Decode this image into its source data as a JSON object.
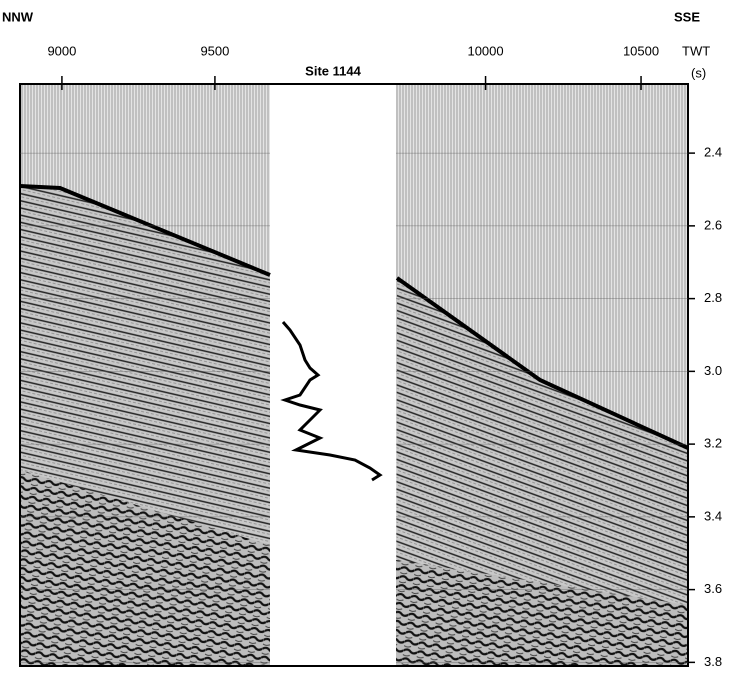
{
  "chart_data": {
    "type": "seismic-section",
    "title": "Site 1144",
    "left_label": "NNW",
    "right_label": "SSE",
    "y_label": "TWT",
    "y_unit": "(s)",
    "panels": [
      {
        "xlim": [
          8863,
          9680
        ],
        "xticks": [
          9000,
          9500
        ]
      },
      {
        "xlim": [
          9712,
          10651
        ],
        "xticks": [
          10000,
          10500
        ]
      }
    ],
    "ylim": [
      2.21,
      3.81
    ],
    "yticks": [
      2.4,
      2.6,
      2.8,
      {
        "value": 3,
        "label": "3.0"
      },
      3.2,
      3.4,
      3.6,
      3.8
    ],
    "grid": true
  }
}
